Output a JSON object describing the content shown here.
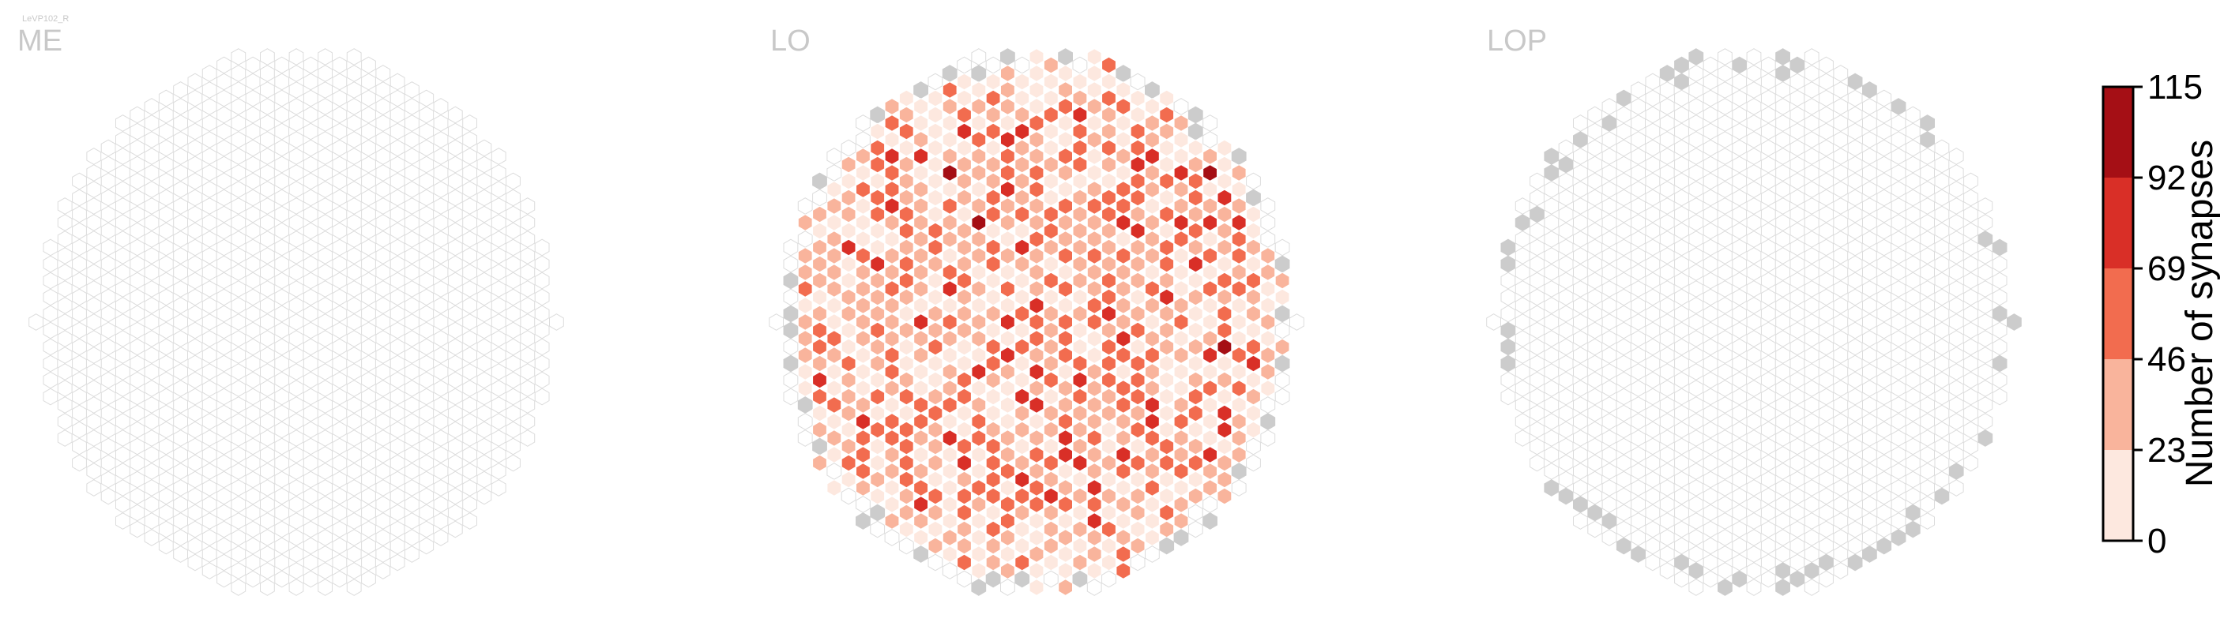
{
  "title": "LeVP102_R",
  "colors": {
    "empty_stroke": "#dcdcdc",
    "no_data_fill": "#cccccc",
    "bins": [
      "#fde8df",
      "#f9b49c",
      "#f26c4f",
      "#d92f27",
      "#a50f15"
    ]
  },
  "chart_data": {
    "type": "heatmap",
    "subtype": "hexagonal column map",
    "title": "LeVP102_R",
    "panels": [
      {
        "name": "ME",
        "value_summary": "no synapses in any column"
      },
      {
        "name": "LO",
        "value_summary": "synapses in most columns, a few grey columns at the edge"
      },
      {
        "name": "LOP",
        "value_summary": "no synapses; grey columns around the rim"
      }
    ],
    "colorbar": {
      "label": "Number of synapses",
      "ticks": [
        0,
        23,
        46,
        69,
        92,
        115
      ],
      "range": [
        0,
        115
      ],
      "bins": 5,
      "orientation": "vertical",
      "placement": "right"
    }
  }
}
